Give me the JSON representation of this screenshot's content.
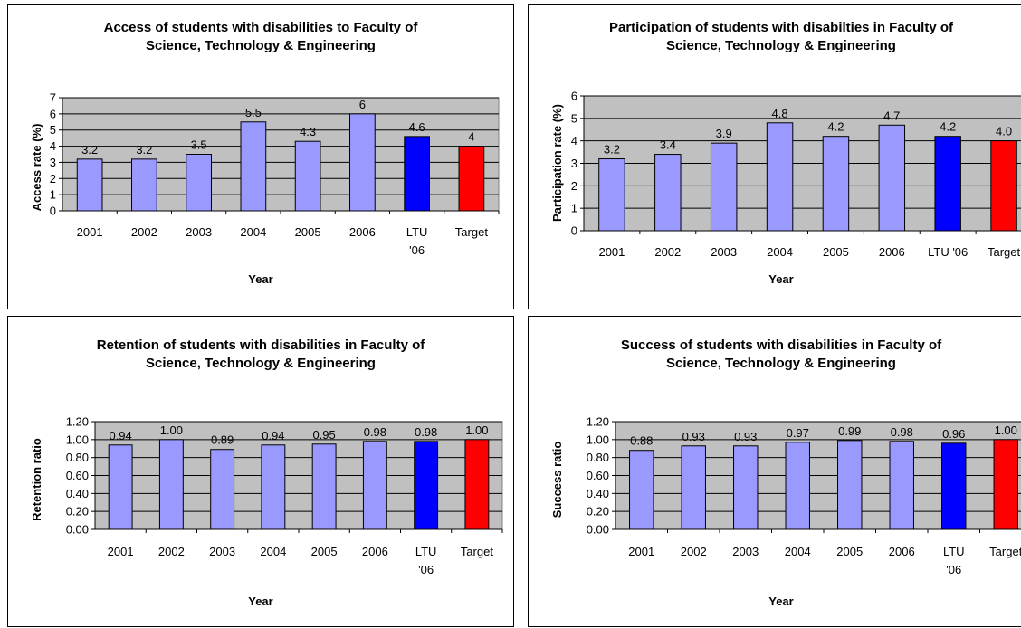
{
  "chart_data": [
    {
      "type": "bar",
      "title_lines": [
        "Access of students with disabilities to Faculty of",
        "Science, Technology & Engineering"
      ],
      "xlabel": "Year",
      "ylabel": "Access rate (%)",
      "categories": [
        "2001",
        "2002",
        "2003",
        "2004",
        "2005",
        "2006",
        "LTU '06",
        "Target"
      ],
      "category_lines": [
        [
          "2001"
        ],
        [
          "2002"
        ],
        [
          "2003"
        ],
        [
          "2004"
        ],
        [
          "2005"
        ],
        [
          "2006"
        ],
        [
          "LTU",
          "'06"
        ],
        [
          "Target"
        ]
      ],
      "values": [
        3.2,
        3.2,
        3.5,
        5.5,
        4.3,
        6,
        4.6,
        4
      ],
      "labels": [
        "3.2",
        "3.2",
        "3.5",
        "5.5",
        "4.3",
        "6",
        "4.6",
        "4"
      ],
      "bar_colors": [
        "#9999ff",
        "#9999ff",
        "#9999ff",
        "#9999ff",
        "#9999ff",
        "#9999ff",
        "#0000ff",
        "#ff0000"
      ],
      "yticks": [
        "0",
        "1",
        "2",
        "3",
        "4",
        "5",
        "6",
        "7"
      ],
      "ylim": [
        0,
        7
      ],
      "grid": true,
      "plot_bg": "#c0c0c0"
    },
    {
      "type": "bar",
      "title_lines": [
        "Participation of students with disabilties in Faculty of",
        "Science, Technology & Engineering"
      ],
      "xlabel": "Year",
      "ylabel": "Participation rate (%)",
      "categories": [
        "2001",
        "2002",
        "2003",
        "2004",
        "2005",
        "2006",
        "LTU '06",
        "Target"
      ],
      "category_lines": [
        [
          "2001"
        ],
        [
          "2002"
        ],
        [
          "2003"
        ],
        [
          "2004"
        ],
        [
          "2005"
        ],
        [
          "2006"
        ],
        [
          "LTU '06"
        ],
        [
          "Target"
        ]
      ],
      "values": [
        3.2,
        3.4,
        3.9,
        4.8,
        4.2,
        4.7,
        4.2,
        4.0
      ],
      "labels": [
        "3.2",
        "3.4",
        "3.9",
        "4.8",
        "4.2",
        "4.7",
        "4.2",
        "4.0"
      ],
      "bar_colors": [
        "#9999ff",
        "#9999ff",
        "#9999ff",
        "#9999ff",
        "#9999ff",
        "#9999ff",
        "#0000ff",
        "#ff0000"
      ],
      "yticks": [
        "0",
        "1",
        "2",
        "3",
        "4",
        "5",
        "6"
      ],
      "ylim": [
        0,
        6
      ],
      "grid": true,
      "plot_bg": "#c0c0c0"
    },
    {
      "type": "bar",
      "title_lines": [
        "Retention of students with disabilities in Faculty of",
        "Science, Technology & Engineering"
      ],
      "xlabel": "Year",
      "ylabel": "Retention ratio",
      "categories": [
        "2001",
        "2002",
        "2003",
        "2004",
        "2005",
        "2006",
        "LTU '06",
        "Target"
      ],
      "category_lines": [
        [
          "2001"
        ],
        [
          "2002"
        ],
        [
          "2003"
        ],
        [
          "2004"
        ],
        [
          "2005"
        ],
        [
          "2006"
        ],
        [
          "LTU",
          "'06"
        ],
        [
          "Target"
        ]
      ],
      "values": [
        0.94,
        1.0,
        0.89,
        0.94,
        0.95,
        0.98,
        0.98,
        1.0
      ],
      "labels": [
        "0.94",
        "1.00",
        "0.89",
        "0.94",
        "0.95",
        "0.98",
        "0.98",
        "1.00"
      ],
      "bar_colors": [
        "#9999ff",
        "#9999ff",
        "#9999ff",
        "#9999ff",
        "#9999ff",
        "#9999ff",
        "#0000ff",
        "#ff0000"
      ],
      "yticks": [
        "0.00",
        "0.20",
        "0.40",
        "0.60",
        "0.80",
        "1.00",
        "1.20"
      ],
      "ylim": [
        0,
        1.2
      ],
      "grid": true,
      "plot_bg": "#c0c0c0"
    },
    {
      "type": "bar",
      "title_lines": [
        "Success of students with disabilities in Faculty of",
        "Science, Technology & Engineering"
      ],
      "xlabel": "Year",
      "ylabel": "Success ratio",
      "categories": [
        "2001",
        "2002",
        "2003",
        "2004",
        "2005",
        "2006",
        "LTU '06",
        "Target"
      ],
      "category_lines": [
        [
          "2001"
        ],
        [
          "2002"
        ],
        [
          "2003"
        ],
        [
          "2004"
        ],
        [
          "2005"
        ],
        [
          "2006"
        ],
        [
          "LTU",
          "'06"
        ],
        [
          "Target"
        ]
      ],
      "values": [
        0.88,
        0.93,
        0.93,
        0.97,
        0.99,
        0.98,
        0.96,
        1.0
      ],
      "labels": [
        "0.88",
        "0.93",
        "0.93",
        "0.97",
        "0.99",
        "0.98",
        "0.96",
        "1.00"
      ],
      "bar_colors": [
        "#9999ff",
        "#9999ff",
        "#9999ff",
        "#9999ff",
        "#9999ff",
        "#9999ff",
        "#0000ff",
        "#ff0000"
      ],
      "yticks": [
        "0.00",
        "0.20",
        "0.40",
        "0.60",
        "0.80",
        "1.00",
        "1.20"
      ],
      "ylim": [
        0,
        1.2
      ],
      "grid": true,
      "plot_bg": "#c0c0c0"
    }
  ]
}
